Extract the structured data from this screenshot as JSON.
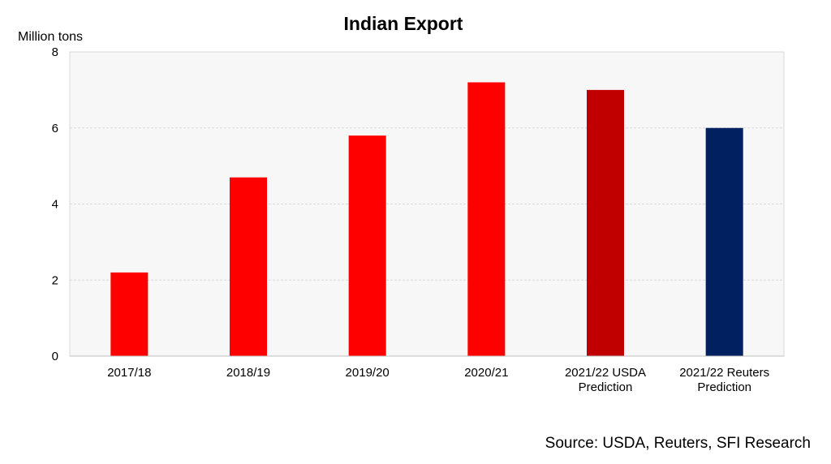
{
  "chart_data": {
    "type": "bar",
    "title": "Indian Export",
    "ylabel": "Million tons",
    "xlabel": "",
    "ylim": [
      0,
      8
    ],
    "yticks": [
      0,
      2,
      4,
      6,
      8
    ],
    "grid": true,
    "categories": [
      [
        "2017/18"
      ],
      [
        "2018/19"
      ],
      [
        "2019/20"
      ],
      [
        "2020/21"
      ],
      [
        "2021/22 USDA",
        "Prediction"
      ],
      [
        "2021/22 Reuters",
        "Prediction"
      ]
    ],
    "values": [
      2.2,
      4.7,
      5.8,
      7.2,
      7.0,
      6.0
    ],
    "bar_colors": [
      "#ff0000",
      "#ff0000",
      "#ff0000",
      "#ff0000",
      "#c00000",
      "#002060"
    ],
    "plot_background": "#f7f7f7",
    "gridline_color": "#d9d9d9"
  },
  "source": "Source: USDA, Reuters, SFI Research"
}
